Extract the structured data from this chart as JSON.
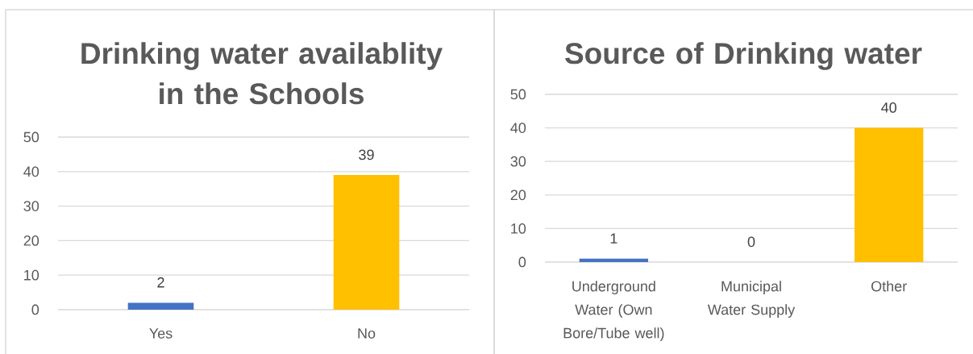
{
  "chart_data": [
    {
      "type": "bar",
      "title": "Drinking water availablity in the Schools",
      "categories": [
        "Yes",
        "No"
      ],
      "values": [
        2,
        39
      ],
      "colors": [
        "#4472c4",
        "#ffc000"
      ],
      "ylim": [
        0,
        50
      ],
      "yticks": [
        0,
        10,
        20,
        30,
        40,
        50
      ],
      "grid": "y",
      "data_labels": true
    },
    {
      "type": "bar",
      "title": "Source of Drinking water",
      "categories": [
        "Underground Water (Own Bore/Tube well)",
        "Municipal Water Supply",
        "Other"
      ],
      "values": [
        1,
        0,
        40
      ],
      "colors": [
        "#4472c4",
        "#a5a5a5",
        "#ffc000"
      ],
      "ylim": [
        0,
        50
      ],
      "yticks": [
        0,
        10,
        20,
        30,
        40,
        50
      ],
      "grid": "y",
      "data_labels": true
    }
  ]
}
